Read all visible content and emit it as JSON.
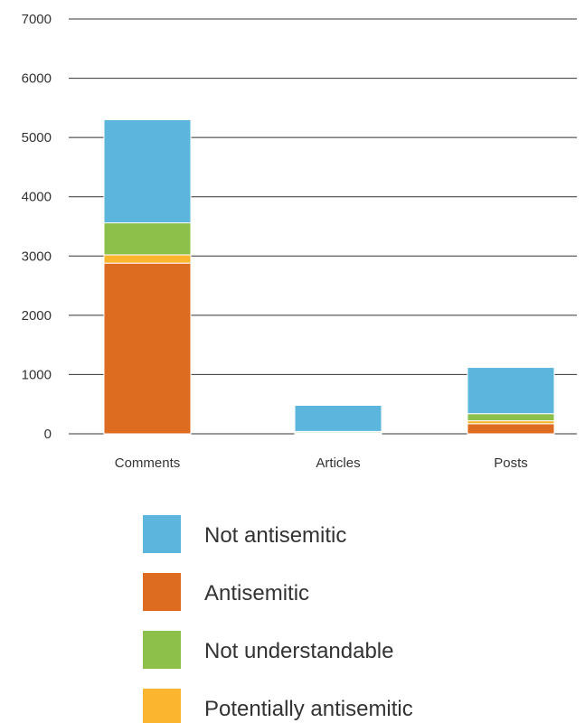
{
  "chart_data": {
    "type": "bar",
    "stacked": true,
    "title": "",
    "xlabel": "",
    "ylabel": "",
    "categories": [
      "Comments",
      "Articles",
      "Posts"
    ],
    "ylim": [
      0,
      7000
    ],
    "yticks": [
      0,
      1000,
      2000,
      3000,
      4000,
      5000,
      6000,
      7000
    ],
    "grid": true,
    "legend_position": "bottom",
    "series": [
      {
        "name": "Antisemitic",
        "color": "#dd6b20",
        "values": [
          2880,
          10,
          170
        ]
      },
      {
        "name": "Potentially antisemitic",
        "color": "#fbb52f",
        "values": [
          140,
          10,
          50
        ]
      },
      {
        "name": "Not understandable",
        "color": "#8dc04a",
        "values": [
          540,
          20,
          120
        ]
      },
      {
        "name": "Not antisemitic",
        "color": "#5cb5dc",
        "values": [
          1740,
          440,
          780
        ]
      }
    ],
    "legend_order": [
      "Not antisemitic",
      "Antisemitic",
      "Not understandable",
      "Potentially antisemitic"
    ]
  }
}
